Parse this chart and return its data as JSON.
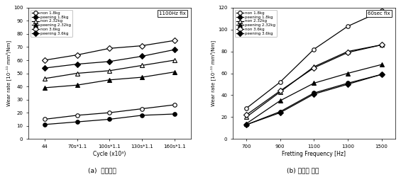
{
  "chart_a": {
    "title": "1100Hz fix",
    "xlabel": "Cycle (x10³)",
    "ylabel": "Wear rate [10⁻¹¹ mm³/Nm]",
    "xtick_labels": [
      "44",
      "70s*1.1",
      "100s*1.1",
      "130s*1.1",
      "160s*1.1"
    ],
    "ylim": [
      0,
      100
    ],
    "yticks": [
      0,
      10,
      20,
      30,
      40,
      50,
      60,
      70,
      80,
      90,
      100
    ],
    "series": [
      {
        "label": "non 1.8kg",
        "marker": "o",
        "filled": false,
        "data": [
          15,
          18,
          20,
          23,
          26
        ]
      },
      {
        "label": "peening 1.8kg",
        "marker": "o",
        "filled": true,
        "data": [
          11,
          13,
          15,
          18,
          19
        ]
      },
      {
        "label": "non 2.32kg",
        "marker": "^",
        "filled": false,
        "data": [
          46,
          50,
          52,
          56,
          60
        ]
      },
      {
        "label": "peening 2.32kg",
        "marker": "^",
        "filled": true,
        "data": [
          39,
          41,
          45,
          47,
          51
        ]
      },
      {
        "label": "non 3.6kg",
        "marker": "D",
        "filled": false,
        "data": [
          60,
          64,
          69,
          71,
          75
        ]
      },
      {
        "label": "peening 3.6kg",
        "marker": "D",
        "filled": true,
        "data": [
          54,
          57,
          59,
          63,
          68
        ]
      }
    ],
    "caption_a": "(a)  하중변수",
    "caption_b": "(b) 주파수 변수"
  },
  "chart_b": {
    "title": "60sec fix",
    "xlabel": "Fretting Frequency [Hz]",
    "ylabel": "Wear rate [10⁻¹¹ mm³/Nm]",
    "xticks": [
      700,
      900,
      1100,
      1300,
      1500
    ],
    "xlim": [
      620,
      1580
    ],
    "ylim": [
      0,
      120
    ],
    "yticks": [
      0,
      20,
      40,
      60,
      80,
      100,
      120
    ],
    "series": [
      {
        "label": "non 1.8kg",
        "marker": "o",
        "filled": false,
        "data": [
          28,
          52,
          82,
          103,
          117
        ]
      },
      {
        "label": "peening 1.8kg",
        "marker": "o",
        "filled": true,
        "data": [
          13,
          25,
          42,
          51,
          59
        ]
      },
      {
        "label": "non 2.32kg",
        "marker": "^",
        "filled": false,
        "data": [
          20,
          43,
          66,
          80,
          86
        ]
      },
      {
        "label": "peening 2.32kg",
        "marker": "^",
        "filled": true,
        "data": [
          14,
          35,
          51,
          60,
          68
        ]
      },
      {
        "label": "non 3.6kg",
        "marker": "D",
        "filled": false,
        "data": [
          22,
          44,
          65,
          79,
          86
        ]
      },
      {
        "label": "peening 3.6kg",
        "marker": "D",
        "filled": true,
        "data": [
          13,
          24,
          41,
          50,
          59
        ]
      }
    ]
  }
}
